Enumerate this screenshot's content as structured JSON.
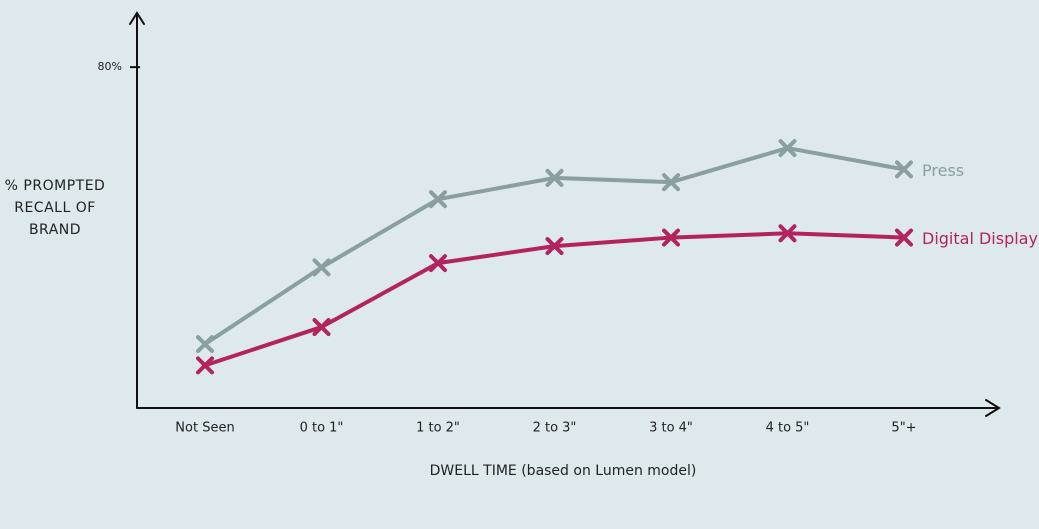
{
  "chart_data": {
    "type": "line",
    "y_label": "% PROMPTED RECALL OF BRAND",
    "x_label": "DWELL TIME (based on Lumen model)",
    "categories": [
      "Not Seen",
      "0 to 1\"",
      "1 to 2\"",
      "2 to 3\"",
      "3 to 4\"",
      "4 to 5\"",
      "5\"+"
    ],
    "series": [
      {
        "name": "Press",
        "color": "#8a9fa0",
        "values": [
          15,
          33,
          49,
          54,
          53,
          61,
          56
        ]
      },
      {
        "name": "Digital Display",
        "color": "#b3245e",
        "values": [
          10,
          19,
          34,
          38,
          40,
          41,
          40
        ]
      }
    ],
    "ylim": [
      0,
      92
    ],
    "yticks": [
      {
        "value": 80,
        "label": "80%"
      }
    ]
  }
}
